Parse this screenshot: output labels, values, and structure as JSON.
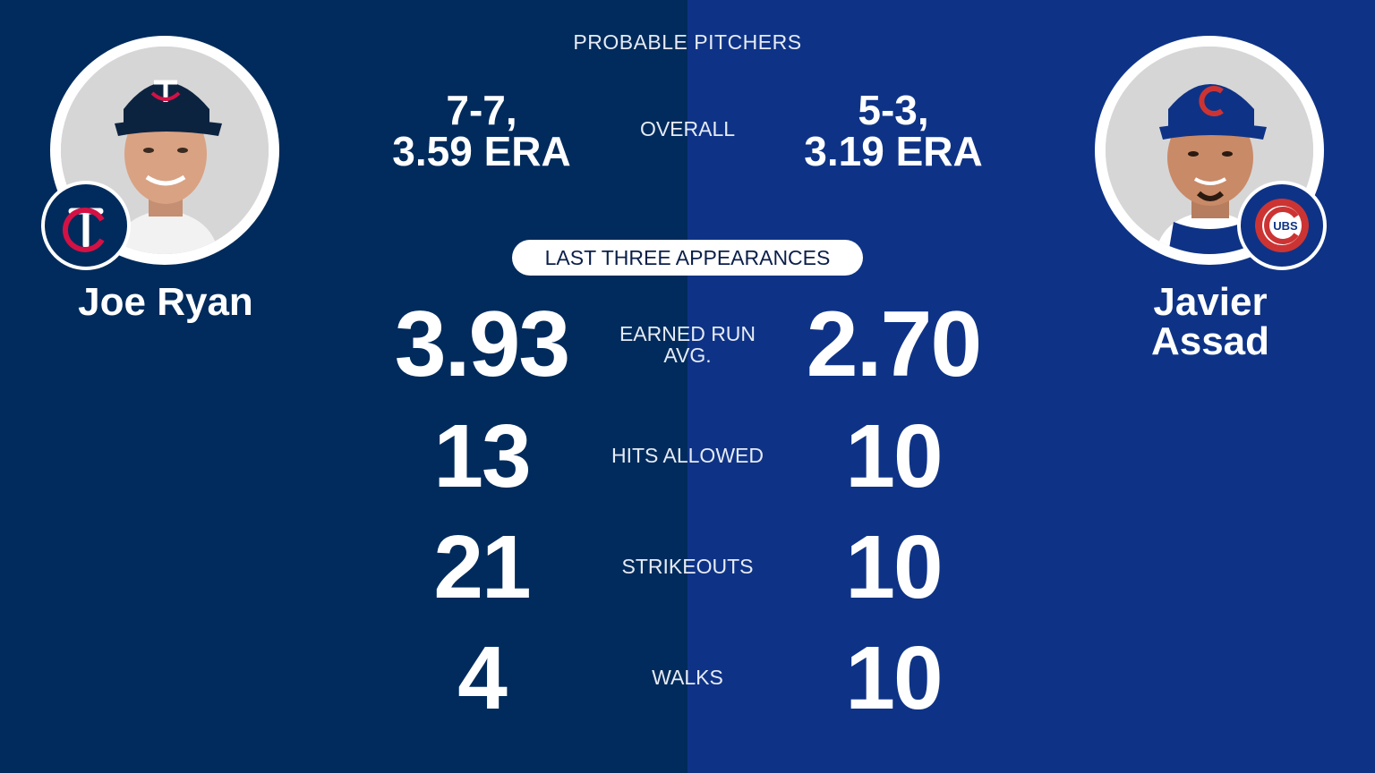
{
  "header": {
    "title": "PROBABLE PITCHERS"
  },
  "section": {
    "label": "LAST THREE APPEARANCES"
  },
  "colors": {
    "left_bg": "#002b5c",
    "right_bg": "#0e3386",
    "twins_red": "#d31145",
    "cubs_red": "#cc3433"
  },
  "left": {
    "name_line1": "Joe Ryan",
    "team_icon": "twins-logo-icon",
    "overall_line1": "7-7,",
    "overall_line2": "3.59 ERA",
    "era": "3.93",
    "hits": "13",
    "strikeouts": "21",
    "walks": "4"
  },
  "right": {
    "name_line1": "Javier",
    "name_line2": "Assad",
    "team_icon": "cubs-logo-icon",
    "overall_line1": "5-3,",
    "overall_line2": "3.19 ERA",
    "era": "2.70",
    "hits": "10",
    "strikeouts": "10",
    "walks": "10"
  },
  "labels": {
    "overall": "OVERALL",
    "era_line1": "EARNED RUN",
    "era_line2": "AVG.",
    "hits": "HITS ALLOWED",
    "strikeouts": "STRIKEOUTS",
    "walks": "WALKS"
  }
}
